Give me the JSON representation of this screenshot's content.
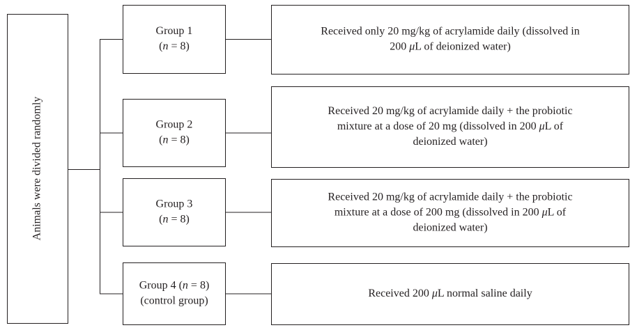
{
  "root": "Animals were divided randomly",
  "groups": [
    {
      "label": [
        [
          {
            "text": "Group 1"
          }
        ],
        [
          {
            "text": "("
          },
          {
            "text": "n",
            "italic": true
          },
          {
            "text": " = 8)"
          }
        ]
      ],
      "description": [
        [
          {
            "text": "Received only 20 mg/kg of acrylamide daily (dissolved in"
          }
        ],
        [
          {
            "text": "200 "
          },
          {
            "text": "μ",
            "italic": true
          },
          {
            "text": "L of deionized water)"
          }
        ]
      ]
    },
    {
      "label": [
        [
          {
            "text": "Group 2"
          }
        ],
        [
          {
            "text": "("
          },
          {
            "text": "n",
            "italic": true
          },
          {
            "text": " = 8)"
          }
        ]
      ],
      "description": [
        [
          {
            "text": "Received 20 mg/kg of acrylamide daily + the probiotic"
          }
        ],
        [
          {
            "text": "mixture at a dose of 20 mg (dissolved in 200 "
          },
          {
            "text": "μ",
            "italic": true
          },
          {
            "text": "L of"
          }
        ],
        [
          {
            "text": "deionized water)"
          }
        ]
      ]
    },
    {
      "label": [
        [
          {
            "text": "Group 3"
          }
        ],
        [
          {
            "text": "("
          },
          {
            "text": "n",
            "italic": true
          },
          {
            "text": " = 8)"
          }
        ]
      ],
      "description": [
        [
          {
            "text": "Received 20 mg/kg of acrylamide daily + the probiotic"
          }
        ],
        [
          {
            "text": "mixture at a dose of 200 mg (dissolved in 200 "
          },
          {
            "text": "μ",
            "italic": true
          },
          {
            "text": "L of"
          }
        ],
        [
          {
            "text": "deionized water)"
          }
        ]
      ]
    },
    {
      "label": [
        [
          {
            "text": "Group 4 ("
          },
          {
            "text": "n",
            "italic": true
          },
          {
            "text": " = 8)"
          }
        ],
        [
          {
            "text": "(control group)"
          }
        ]
      ],
      "description": [
        [
          {
            "text": "Received 200 "
          },
          {
            "text": "μ",
            "italic": true
          },
          {
            "text": "L normal saline daily"
          }
        ]
      ]
    }
  ]
}
